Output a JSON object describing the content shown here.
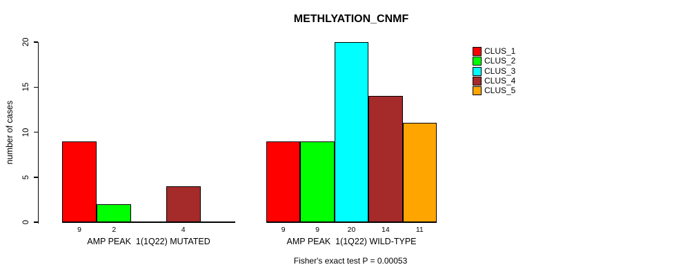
{
  "title": "METHLYATION_CNMF",
  "footnote": "Fisher's exact test P = 0.00053",
  "chart_data": {
    "type": "bar",
    "title": "METHLYATION_CNMF",
    "ylabel": "number of cases",
    "ylim": [
      0,
      20
    ],
    "yticks": [
      0,
      5,
      10,
      15,
      20
    ],
    "grid": false,
    "legend_position": "right",
    "legend": [
      "CLUS_1",
      "CLUS_2",
      "CLUS_3",
      "CLUS_4",
      "CLUS_5"
    ],
    "colors": [
      "#FF0000",
      "#00FF00",
      "#00FFFF",
      "#A52A2A",
      "#FFA500"
    ],
    "groups": [
      {
        "label": "AMP PEAK  1(1Q22) MUTATED",
        "categories": [
          "CLUS_1",
          "CLUS_2",
          "CLUS_3",
          "CLUS_4",
          "CLUS_5"
        ],
        "values": [
          9,
          2,
          0,
          4,
          0
        ],
        "bar_labels": [
          "9",
          "2",
          "",
          "4",
          ""
        ]
      },
      {
        "label": "AMP PEAK  1(1Q22) WILD-TYPE",
        "categories": [
          "CLUS_1",
          "CLUS_2",
          "CLUS_3",
          "CLUS_4",
          "CLUS_5"
        ],
        "values": [
          9,
          9,
          20,
          14,
          11
        ],
        "bar_labels": [
          "9",
          "9",
          "20",
          "14",
          "11"
        ]
      }
    ],
    "annotation": "Fisher's exact test P = 0.00053"
  }
}
